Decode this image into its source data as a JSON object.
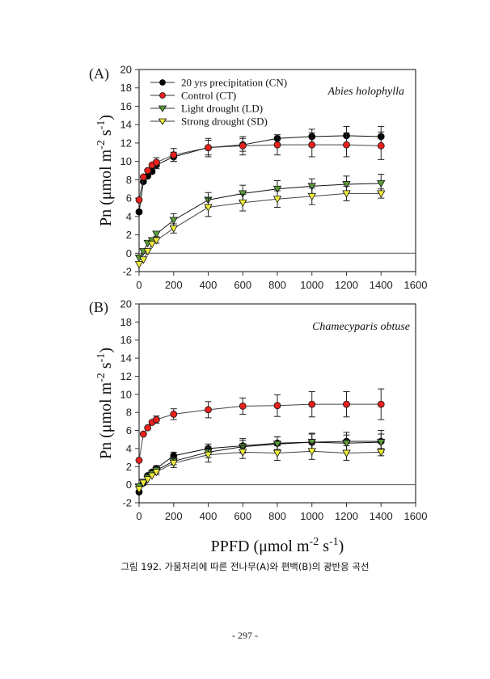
{
  "figure": {
    "caption": "그림 192. 가뭄처리에 따른 전나무(A)와 편백(B)의 광반응 곡선",
    "page_number": "- 297 -",
    "xlabel_main": "PPFD (μmol m",
    "xlabel_sup1": "-2",
    "xlabel_mid": " s",
    "xlabel_sup2": "-1",
    "xlabel_end": ")",
    "ylabel_main": "Pn (μmol m",
    "ylabel_sup1": "-2",
    "ylabel_mid": " s",
    "ylabel_sup2": "-1",
    "ylabel_end": ")"
  },
  "chart_data": [
    {
      "type": "line",
      "panel_label": "(A)",
      "species": "Abies holophylla",
      "title": "",
      "xlabel": "PPFD (μmol m-2 s-1)",
      "ylabel": "Pn (μmol m-2 s-1)",
      "xlim": [
        0,
        1600
      ],
      "ylim": [
        -2,
        20
      ],
      "xticks": [
        "0",
        "200",
        "400",
        "600",
        "800",
        "1000",
        "1200",
        "1400",
        "1600"
      ],
      "yticks": [
        "-2",
        "0",
        "2",
        "4",
        "6",
        "8",
        "10",
        "12",
        "14",
        "16",
        "18",
        "20"
      ],
      "grid": false,
      "legend_position": "top-left",
      "x": [
        0,
        25,
        50,
        75,
        100,
        200,
        400,
        600,
        800,
        1000,
        1200,
        1400
      ],
      "series": [
        {
          "name": "20 yrs precipitation (CN)",
          "marker": "circle",
          "color": "#000000",
          "values": [
            4.5,
            7.8,
            8.4,
            8.9,
            9.6,
            10.5,
            11.5,
            11.8,
            12.5,
            12.7,
            12.8,
            12.7
          ],
          "errors": [
            0,
            0,
            0,
            0,
            0.4,
            0.5,
            0.8,
            0.7,
            0,
            0.8,
            1.0,
            1.1
          ]
        },
        {
          "name": "Control (CT)",
          "marker": "circle",
          "color": "#e8211d",
          "values": [
            5.8,
            8.3,
            9.0,
            9.6,
            9.9,
            10.7,
            11.5,
            11.7,
            11.8,
            11.8,
            11.8,
            11.7
          ],
          "errors": [
            0,
            0,
            0,
            0,
            0.5,
            0.7,
            1.0,
            1.0,
            1.1,
            1.3,
            1.3,
            1.5
          ]
        },
        {
          "name": "Light drought (LD)",
          "marker": "triangle-down",
          "color": "#5a9e3a",
          "values": [
            -0.5,
            0.2,
            1.1,
            1.4,
            2.1,
            3.6,
            5.8,
            6.5,
            7.0,
            7.3,
            7.5,
            7.6
          ],
          "errors": [
            0,
            0,
            0,
            0,
            0.3,
            0.7,
            0.8,
            0.9,
            0.9,
            0.8,
            0.9,
            1.0
          ]
        },
        {
          "name": "Strong drought (SD)",
          "marker": "triangle-down",
          "color": "#f2ee3c",
          "values": [
            -1.2,
            -0.7,
            0.2,
            1.0,
            1.4,
            2.7,
            5.0,
            5.5,
            5.9,
            6.2,
            6.5,
            6.5
          ],
          "errors": [
            0,
            0,
            0,
            0,
            0.3,
            0.5,
            1.0,
            0.9,
            0.9,
            0.9,
            0.8,
            0.5
          ]
        }
      ]
    },
    {
      "type": "line",
      "panel_label": "(B)",
      "species": "Chamecyparis obtuse",
      "title": "",
      "xlabel": "PPFD (μmol m-2 s-1)",
      "ylabel": "Pn (μmol m-2 s-1)",
      "xlim": [
        0,
        1600
      ],
      "ylim": [
        -2,
        20
      ],
      "xticks": [
        "0",
        "200",
        "400",
        "600",
        "800",
        "1000",
        "1200",
        "1400",
        "1600"
      ],
      "yticks": [
        "-2",
        "0",
        "2",
        "4",
        "6",
        "8",
        "10",
        "12",
        "14",
        "16",
        "18",
        "20"
      ],
      "grid": false,
      "x": [
        0,
        25,
        50,
        75,
        100,
        200,
        400,
        600,
        800,
        1000,
        1200,
        1400
      ],
      "series": [
        {
          "name": "20 yrs precipitation (CN)",
          "marker": "circle",
          "color": "#000000",
          "values": [
            -0.8,
            0.2,
            1.0,
            1.4,
            1.8,
            3.2,
            4.0,
            4.3,
            4.6,
            4.7,
            4.8,
            4.8
          ],
          "errors": [
            0,
            0,
            0,
            0,
            0.3,
            0.4,
            0.5,
            0.8,
            0.7,
            1.0,
            1.0,
            1.2
          ]
        },
        {
          "name": "Control (CT)",
          "marker": "circle",
          "color": "#e8211d",
          "values": [
            2.7,
            5.6,
            6.3,
            6.9,
            7.2,
            7.8,
            8.3,
            8.7,
            8.75,
            8.9,
            8.9,
            8.9
          ],
          "errors": [
            0,
            0,
            0,
            0,
            0.4,
            0.6,
            0.9,
            0.9,
            1.2,
            1.4,
            1.4,
            1.7
          ]
        },
        {
          "name": "Light drought (LD)",
          "marker": "triangle-down",
          "color": "#5a9e3a",
          "values": [
            -0.2,
            0.3,
            0.8,
            1.2,
            1.6,
            2.6,
            3.6,
            4.2,
            4.5,
            4.7,
            4.6,
            4.7
          ],
          "errors": [
            0,
            0,
            0,
            0,
            0.3,
            0.4,
            0.6,
            0.7,
            0.8,
            0.9,
            0.9,
            0.9
          ]
        },
        {
          "name": "Strong drought (SD)",
          "marker": "triangle-down",
          "color": "#f2ee3c",
          "values": [
            -0.5,
            0.2,
            0.6,
            1.0,
            1.4,
            2.4,
            3.3,
            3.6,
            3.5,
            3.7,
            3.5,
            3.6
          ],
          "errors": [
            0,
            0,
            0,
            0,
            0.3,
            0.5,
            0.8,
            0.7,
            0.8,
            0.9,
            0.8,
            0.4
          ]
        }
      ]
    }
  ]
}
